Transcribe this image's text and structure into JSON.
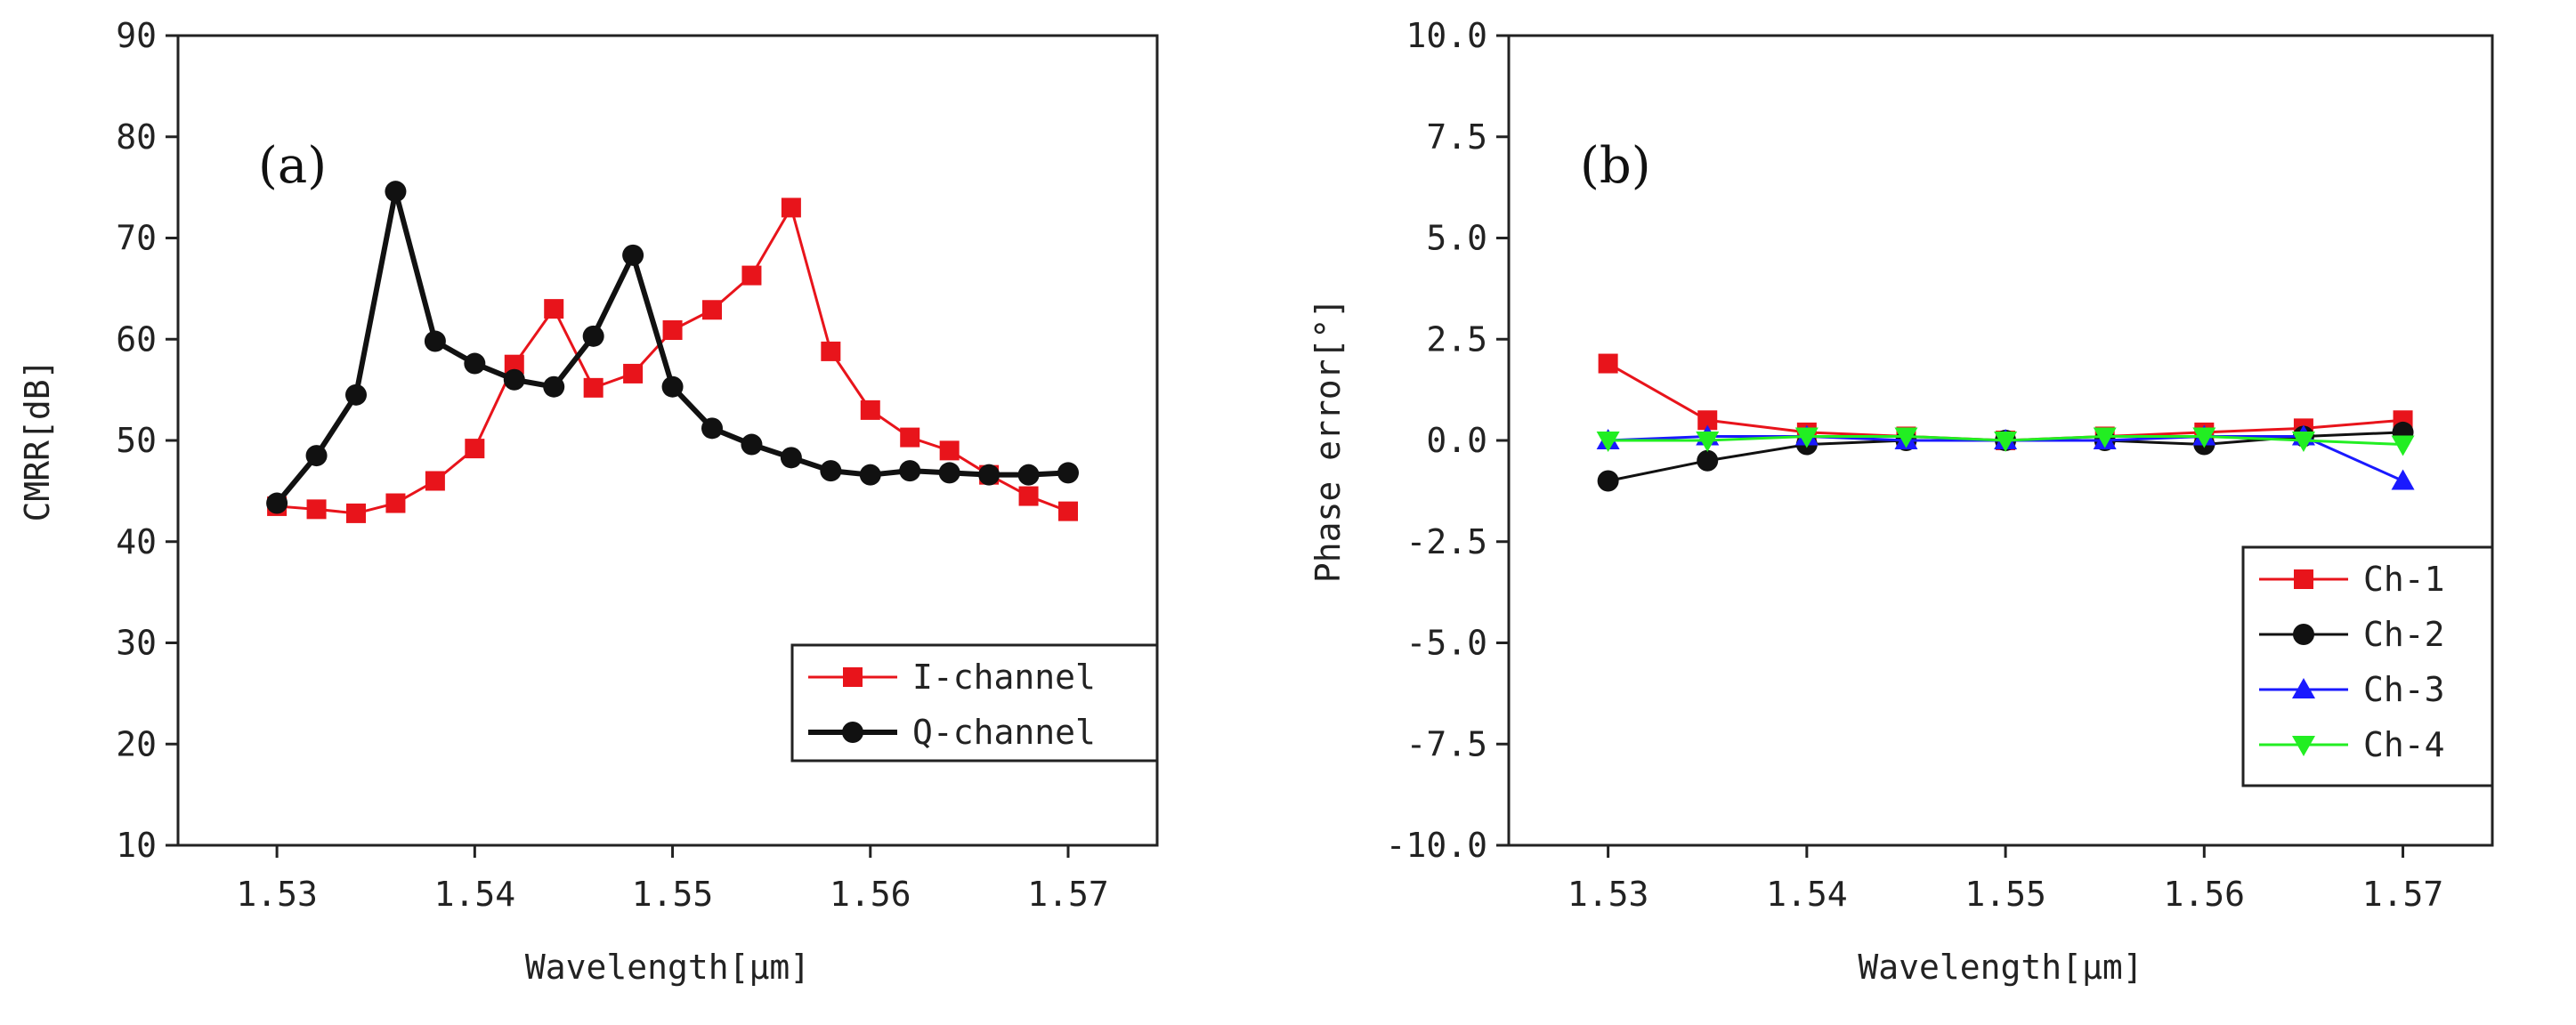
{
  "colors": {
    "red": "#e8141b",
    "black": "#111111",
    "blue": "#1a1aff",
    "green": "#22ee22",
    "axis": "#222222"
  },
  "chart_data": [
    {
      "type": "line",
      "panel_label": "(a)",
      "xlabel": "Wavelength[μm]",
      "ylabel": "CMRR[dB]",
      "xlim": [
        1.525,
        1.5745
      ],
      "ylim": [
        10,
        90
      ],
      "xticks": [
        1.53,
        1.54,
        1.55,
        1.56,
        1.57
      ],
      "xtick_labels": [
        "1.53",
        "1.54",
        "1.55",
        "1.56",
        "1.57"
      ],
      "yticks": [
        10,
        20,
        30,
        40,
        50,
        60,
        70,
        80,
        90
      ],
      "ytick_labels": [
        "10",
        "20",
        "30",
        "40",
        "50",
        "60",
        "70",
        "80",
        "90"
      ],
      "legend_position": "bottom-right",
      "series": [
        {
          "name": "I-channel",
          "color": "#e8141b",
          "marker": "square",
          "thick": false,
          "x": [
            1.53,
            1.532,
            1.534,
            1.536,
            1.538,
            1.54,
            1.542,
            1.544,
            1.546,
            1.548,
            1.55,
            1.552,
            1.554,
            1.556,
            1.558,
            1.56,
            1.562,
            1.564,
            1.566,
            1.568,
            1.57
          ],
          "y": [
            43.5,
            43.2,
            42.8,
            43.8,
            46.0,
            49.2,
            57.5,
            63.0,
            55.2,
            56.6,
            60.9,
            62.9,
            66.3,
            73.0,
            58.8,
            53.0,
            50.3,
            49.0,
            46.6,
            44.5,
            43.0
          ]
        },
        {
          "name": "Q-channel",
          "color": "#111111",
          "marker": "circle",
          "thick": true,
          "x": [
            1.53,
            1.532,
            1.534,
            1.536,
            1.538,
            1.54,
            1.542,
            1.544,
            1.546,
            1.548,
            1.55,
            1.552,
            1.554,
            1.556,
            1.558,
            1.56,
            1.562,
            1.564,
            1.566,
            1.568,
            1.57
          ],
          "y": [
            43.8,
            48.5,
            54.5,
            74.6,
            59.8,
            57.6,
            56.0,
            55.3,
            60.3,
            68.3,
            55.3,
            51.2,
            49.6,
            48.3,
            47.0,
            46.6,
            47.0,
            46.8,
            46.6,
            46.6,
            46.8
          ]
        }
      ]
    },
    {
      "type": "line",
      "panel_label": "(b)",
      "xlabel": "Wavelength[μm]",
      "ylabel": "Phase error[°]",
      "xlim": [
        1.525,
        1.5745
      ],
      "ylim": [
        -10,
        10
      ],
      "xticks": [
        1.53,
        1.54,
        1.55,
        1.56,
        1.57
      ],
      "xtick_labels": [
        "1.53",
        "1.54",
        "1.55",
        "1.56",
        "1.57"
      ],
      "yticks": [
        -10,
        -7.5,
        -5,
        -2.5,
        0,
        2.5,
        5,
        7.5,
        10
      ],
      "ytick_labels": [
        "-10.0",
        "-7.5",
        "-5.0",
        "-2.5",
        "0.0",
        "2.5",
        "5.0",
        "7.5",
        "10.0"
      ],
      "legend_position": "bottom-right",
      "series": [
        {
          "name": "Ch-1",
          "color": "#e8141b",
          "marker": "square",
          "thick": false,
          "x": [
            1.53,
            1.535,
            1.54,
            1.545,
            1.55,
            1.555,
            1.56,
            1.565,
            1.57
          ],
          "y": [
            1.9,
            0.5,
            0.2,
            0.1,
            0.0,
            0.1,
            0.2,
            0.3,
            0.5
          ]
        },
        {
          "name": "Ch-2",
          "color": "#111111",
          "marker": "circle",
          "thick": false,
          "x": [
            1.53,
            1.535,
            1.54,
            1.545,
            1.55,
            1.555,
            1.56,
            1.565,
            1.57
          ],
          "y": [
            -1.0,
            -0.5,
            -0.1,
            0.0,
            0.0,
            0.0,
            -0.1,
            0.1,
            0.2
          ]
        },
        {
          "name": "Ch-3",
          "color": "#1a1aff",
          "marker": "triangle-up",
          "thick": false,
          "x": [
            1.53,
            1.535,
            1.54,
            1.545,
            1.55,
            1.555,
            1.56,
            1.565,
            1.57
          ],
          "y": [
            0.0,
            0.1,
            0.1,
            0.0,
            0.0,
            0.0,
            0.1,
            0.1,
            -1.0
          ]
        },
        {
          "name": "Ch-4",
          "color": "#22ee22",
          "marker": "triangle-down",
          "thick": false,
          "x": [
            1.53,
            1.535,
            1.54,
            1.545,
            1.55,
            1.555,
            1.56,
            1.565,
            1.57
          ],
          "y": [
            0.0,
            0.0,
            0.1,
            0.1,
            0.0,
            0.1,
            0.1,
            0.0,
            -0.1
          ]
        }
      ]
    }
  ]
}
